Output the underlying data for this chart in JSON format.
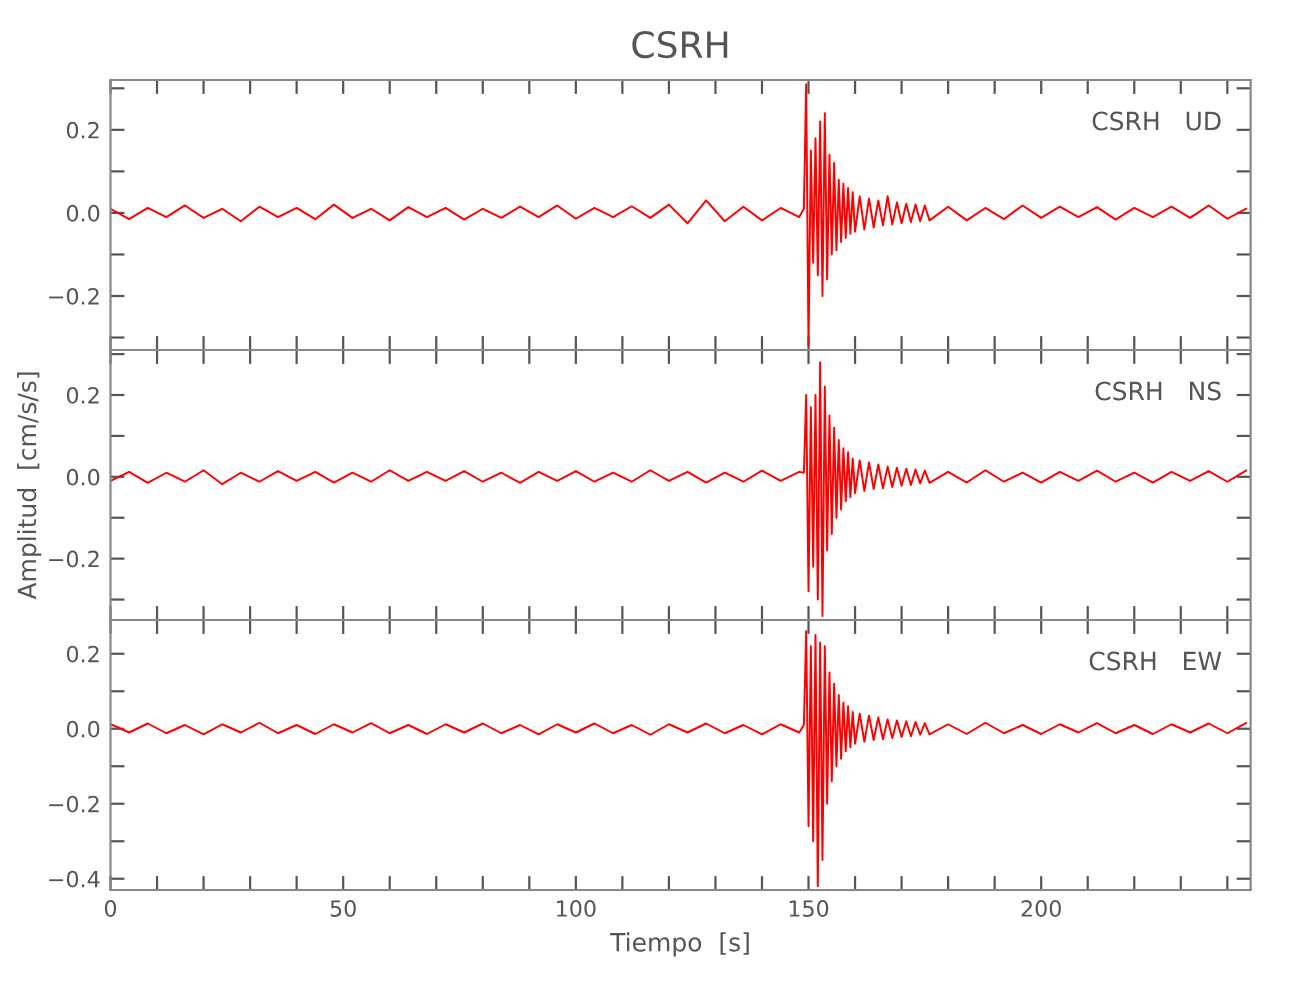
{
  "chart_data": [
    {
      "type": "line",
      "title": "CSRH",
      "annotations": [
        "CSRH   UD"
      ],
      "tick_labels": "y",
      "grid": false,
      "legend": false,
      "xlim": [
        0,
        245
      ],
      "xticks": [
        {
          "value": 0,
          "label": null
        },
        {
          "value": 10,
          "label": null
        },
        {
          "value": 20,
          "label": null
        },
        {
          "value": 30,
          "label": null
        },
        {
          "value": 40,
          "label": null
        },
        {
          "value": 50,
          "label": null
        },
        {
          "value": 60,
          "label": null
        },
        {
          "value": 70,
          "label": null
        },
        {
          "value": 80,
          "label": null
        },
        {
          "value": 90,
          "label": null
        },
        {
          "value": 100,
          "label": null
        },
        {
          "value": 110,
          "label": null
        },
        {
          "value": 120,
          "label": null
        },
        {
          "value": 130,
          "label": null
        },
        {
          "value": 140,
          "label": null
        },
        {
          "value": 150,
          "label": null
        },
        {
          "value": 160,
          "label": null
        },
        {
          "value": 170,
          "label": null
        },
        {
          "value": 180,
          "label": null
        },
        {
          "value": 190,
          "label": null
        },
        {
          "value": 200,
          "label": null
        },
        {
          "value": 210,
          "label": null
        },
        {
          "value": 220,
          "label": null
        },
        {
          "value": 230,
          "label": null
        },
        {
          "value": 240,
          "label": null
        }
      ],
      "ylim": [
        -0.33,
        0.32
      ],
      "yticks": [
        {
          "value": -0.3,
          "label": null
        },
        {
          "value": -0.2,
          "label": "−0.2"
        },
        {
          "value": -0.1,
          "label": null
        },
        {
          "value": 0,
          "label": "0.0"
        },
        {
          "value": 0.1,
          "label": null
        },
        {
          "value": 0.2,
          "label": "0.2"
        },
        {
          "value": 0.3,
          "label": null
        }
      ],
      "x": [
        0,
        4,
        8,
        12,
        16,
        20,
        24,
        28,
        32,
        36,
        40,
        44,
        48,
        52,
        56,
        60,
        64,
        68,
        72,
        76,
        80,
        84,
        88,
        92,
        96,
        100,
        104,
        108,
        112,
        116,
        120,
        124,
        128,
        132,
        136,
        140,
        144,
        148,
        149,
        149.5,
        150,
        150.5,
        151,
        151.5,
        152,
        152.5,
        153,
        153.5,
        154,
        154.5,
        155,
        155.5,
        156,
        156.5,
        157,
        157.5,
        158,
        158.5,
        159,
        159.5,
        160,
        161,
        162,
        163,
        164,
        165,
        166,
        167,
        168,
        169,
        170,
        171,
        172,
        173,
        174,
        175,
        176,
        180,
        184,
        188,
        192,
        196,
        200,
        204,
        208,
        212,
        216,
        220,
        224,
        228,
        232,
        236,
        240,
        244
      ],
      "series": [
        {
          "color": "#ff0000",
          "values": [
            0.01,
            -0.015,
            0.012,
            -0.01,
            0.018,
            -0.012,
            0.01,
            -0.02,
            0.015,
            -0.01,
            0.012,
            -0.015,
            0.02,
            -0.012,
            0.01,
            -0.018,
            0.014,
            -0.01,
            0.012,
            -0.016,
            0.01,
            -0.012,
            0.015,
            -0.01,
            0.018,
            -0.014,
            0.012,
            -0.01,
            0.016,
            -0.012,
            0.02,
            -0.025,
            0.03,
            -0.02,
            0.015,
            -0.018,
            0.012,
            -0.01,
            0.01,
            0.31,
            -0.32,
            0.15,
            -0.12,
            0.18,
            -0.15,
            0.22,
            -0.2,
            0.24,
            -0.16,
            0.14,
            -0.1,
            0.12,
            -0.09,
            0.08,
            -0.07,
            0.07,
            -0.06,
            0.06,
            -0.05,
            0.05,
            -0.045,
            0.04,
            -0.04,
            0.035,
            -0.035,
            0.03,
            -0.03,
            0.04,
            -0.028,
            0.025,
            -0.025,
            0.022,
            -0.022,
            0.02,
            -0.02,
            0.018,
            -0.018,
            0.015,
            -0.018,
            0.012,
            -0.015,
            0.018,
            -0.012,
            0.015,
            -0.01,
            0.014,
            -0.016,
            0.012,
            -0.01,
            0.015,
            -0.012,
            0.018,
            -0.014,
            0.01
          ]
        }
      ]
    },
    {
      "type": "line",
      "ylabel": "Amplitud  [cm/s/s]",
      "annotations": [
        "CSRH   NS"
      ],
      "tick_labels": "y",
      "grid": false,
      "legend": false,
      "xlim": [
        0,
        245
      ],
      "xticks": [
        {
          "value": 0,
          "label": null
        },
        {
          "value": 10,
          "label": null
        },
        {
          "value": 20,
          "label": null
        },
        {
          "value": 30,
          "label": null
        },
        {
          "value": 40,
          "label": null
        },
        {
          "value": 50,
          "label": null
        },
        {
          "value": 60,
          "label": null
        },
        {
          "value": 70,
          "label": null
        },
        {
          "value": 80,
          "label": null
        },
        {
          "value": 90,
          "label": null
        },
        {
          "value": 100,
          "label": null
        },
        {
          "value": 110,
          "label": null
        },
        {
          "value": 120,
          "label": null
        },
        {
          "value": 130,
          "label": null
        },
        {
          "value": 140,
          "label": null
        },
        {
          "value": 150,
          "label": null
        },
        {
          "value": 160,
          "label": null
        },
        {
          "value": 170,
          "label": null
        },
        {
          "value": 180,
          "label": null
        },
        {
          "value": 190,
          "label": null
        },
        {
          "value": 200,
          "label": null
        },
        {
          "value": 210,
          "label": null
        },
        {
          "value": 220,
          "label": null
        },
        {
          "value": 230,
          "label": null
        },
        {
          "value": 240,
          "label": null
        }
      ],
      "ylim": [
        -0.35,
        0.31
      ],
      "yticks": [
        {
          "value": -0.3,
          "label": null
        },
        {
          "value": -0.2,
          "label": "−0.2"
        },
        {
          "value": -0.1,
          "label": null
        },
        {
          "value": 0,
          "label": "0.0"
        },
        {
          "value": 0.1,
          "label": null
        },
        {
          "value": 0.2,
          "label": "0.2"
        },
        {
          "value": 0.3,
          "label": null
        }
      ],
      "x": [
        0,
        4,
        8,
        12,
        16,
        20,
        24,
        28,
        32,
        36,
        40,
        44,
        48,
        52,
        56,
        60,
        64,
        68,
        72,
        76,
        80,
        84,
        88,
        92,
        96,
        100,
        104,
        108,
        112,
        116,
        120,
        124,
        128,
        132,
        136,
        140,
        144,
        148,
        149,
        149.5,
        150,
        150.5,
        151,
        151.5,
        152,
        152.5,
        153,
        153.5,
        154,
        154.5,
        155,
        155.5,
        156,
        156.5,
        157,
        157.5,
        158,
        158.5,
        159,
        159.5,
        160,
        161,
        162,
        163,
        164,
        165,
        166,
        167,
        168,
        169,
        170,
        171,
        172,
        173,
        174,
        175,
        176,
        180,
        184,
        188,
        192,
        196,
        200,
        204,
        208,
        212,
        216,
        220,
        224,
        228,
        232,
        236,
        240,
        244
      ],
      "series": [
        {
          "color": "#ff0000",
          "values": [
            -0.01,
            0.012,
            -0.015,
            0.01,
            -0.012,
            0.016,
            -0.018,
            0.01,
            -0.012,
            0.014,
            -0.01,
            0.012,
            -0.014,
            0.01,
            -0.012,
            0.016,
            -0.01,
            0.012,
            -0.01,
            0.014,
            -0.012,
            0.01,
            -0.015,
            0.012,
            -0.01,
            0.014,
            -0.012,
            0.01,
            -0.012,
            0.016,
            -0.01,
            0.012,
            -0.014,
            0.01,
            -0.012,
            0.015,
            -0.01,
            0.012,
            0.01,
            0.2,
            -0.28,
            0.17,
            -0.22,
            0.2,
            -0.3,
            0.28,
            -0.34,
            0.22,
            -0.18,
            0.15,
            -0.14,
            0.12,
            -0.1,
            0.09,
            -0.08,
            0.07,
            -0.06,
            0.06,
            -0.05,
            0.045,
            -0.04,
            0.04,
            -0.035,
            0.035,
            -0.03,
            0.03,
            -0.028,
            0.025,
            -0.025,
            0.022,
            -0.022,
            0.02,
            -0.02,
            0.018,
            -0.016,
            0.015,
            -0.015,
            0.012,
            -0.014,
            0.016,
            -0.012,
            0.01,
            -0.014,
            0.012,
            -0.01,
            0.015,
            -0.012,
            0.01,
            -0.014,
            0.012,
            -0.01,
            0.014,
            -0.012,
            0.015
          ]
        }
      ]
    },
    {
      "type": "line",
      "xlabel": "Tiempo  [s]",
      "annotations": [
        "CSRH   EW"
      ],
      "grid": false,
      "legend": false,
      "xlim": [
        0,
        245
      ],
      "xticks": [
        0,
        {
          "value": 10,
          "label": null
        },
        {
          "value": 20,
          "label": null
        },
        {
          "value": 30,
          "label": null
        },
        {
          "value": 40,
          "label": null
        },
        50,
        {
          "value": 60,
          "label": null
        },
        {
          "value": 70,
          "label": null
        },
        {
          "value": 80,
          "label": null
        },
        {
          "value": 90,
          "label": null
        },
        100,
        {
          "value": 110,
          "label": null
        },
        {
          "value": 120,
          "label": null
        },
        {
          "value": 130,
          "label": null
        },
        {
          "value": 140,
          "label": null
        },
        150,
        {
          "value": 160,
          "label": null
        },
        {
          "value": 170,
          "label": null
        },
        {
          "value": 180,
          "label": null
        },
        {
          "value": 190,
          "label": null
        },
        200,
        {
          "value": 210,
          "label": null
        },
        {
          "value": 220,
          "label": null
        },
        {
          "value": 230,
          "label": null
        },
        {
          "value": 240,
          "label": null
        }
      ],
      "ylim": [
        -0.43,
        0.29
      ],
      "yticks": [
        {
          "value": -0.4,
          "label": "−0.4"
        },
        {
          "value": -0.3,
          "label": null
        },
        {
          "value": -0.2,
          "label": "−0.2"
        },
        {
          "value": -0.1,
          "label": null
        },
        {
          "value": 0,
          "label": "0.0"
        },
        {
          "value": 0.1,
          "label": null
        },
        {
          "value": 0.2,
          "label": "0.2"
        }
      ],
      "x": [
        0,
        4,
        8,
        12,
        16,
        20,
        24,
        28,
        32,
        36,
        40,
        44,
        48,
        52,
        56,
        60,
        64,
        68,
        72,
        76,
        80,
        84,
        88,
        92,
        96,
        100,
        104,
        108,
        112,
        116,
        120,
        124,
        128,
        132,
        136,
        140,
        144,
        148,
        149,
        149.5,
        150,
        150.5,
        151,
        151.5,
        152,
        152.5,
        153,
        153.5,
        154,
        154.5,
        155,
        155.5,
        156,
        156.5,
        157,
        157.5,
        158,
        158.5,
        159,
        159.5,
        160,
        161,
        162,
        163,
        164,
        165,
        166,
        167,
        168,
        169,
        170,
        171,
        172,
        173,
        174,
        175,
        176,
        180,
        184,
        188,
        192,
        196,
        200,
        204,
        208,
        212,
        216,
        220,
        224,
        228,
        232,
        236,
        240,
        244
      ],
      "series": [
        {
          "color": "#ff0000",
          "values": [
            0.012,
            -0.01,
            0.014,
            -0.012,
            0.01,
            -0.015,
            0.012,
            -0.01,
            0.016,
            -0.012,
            0.01,
            -0.014,
            0.012,
            -0.01,
            0.015,
            -0.012,
            0.01,
            -0.014,
            0.012,
            -0.01,
            0.014,
            -0.012,
            0.01,
            -0.015,
            0.012,
            -0.01,
            0.014,
            -0.012,
            0.01,
            -0.016,
            0.012,
            -0.01,
            0.014,
            -0.012,
            0.01,
            -0.015,
            0.012,
            -0.01,
            0.01,
            0.26,
            -0.26,
            0.22,
            -0.3,
            0.25,
            -0.42,
            0.23,
            -0.35,
            0.22,
            -0.2,
            0.15,
            -0.14,
            0.12,
            -0.1,
            0.09,
            -0.08,
            0.07,
            -0.06,
            0.06,
            -0.05,
            0.045,
            -0.04,
            0.04,
            -0.035,
            0.035,
            -0.03,
            0.03,
            -0.028,
            0.025,
            -0.025,
            0.022,
            -0.022,
            0.02,
            -0.02,
            0.018,
            -0.016,
            0.015,
            -0.015,
            0.012,
            -0.014,
            0.016,
            -0.012,
            0.01,
            -0.014,
            0.012,
            -0.01,
            0.015,
            -0.012,
            0.01,
            -0.014,
            0.012,
            -0.01,
            0.014,
            -0.012,
            0.015
          ]
        }
      ]
    }
  ]
}
